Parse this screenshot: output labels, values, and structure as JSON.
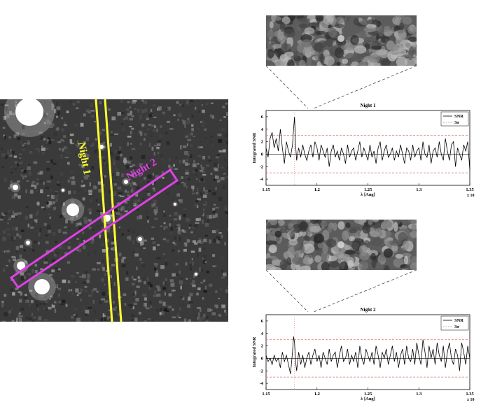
{
  "field": {
    "slit_labels": [
      {
        "text": "Night 1",
        "color": "#ffff33"
      },
      {
        "text": "Night 2",
        "color": "#e040e8"
      }
    ]
  },
  "chart_data": [
    {
      "type": "line",
      "title": "Night 1",
      "xlabel": "λ [Ang]",
      "ylabel": "Integrated SNR",
      "x_multiplier": "x 10",
      "x_multiplier_exp": "4",
      "xlim": [
        1.15,
        1.35
      ],
      "ylim": [
        -5,
        7
      ],
      "xticks": [
        "1.15",
        "1.2",
        "1.25",
        "1.3",
        "1.35"
      ],
      "yticks": [
        "-4",
        "-2",
        "0",
        "2",
        "4",
        "6"
      ],
      "legend": {
        "position": "top-right",
        "entries": [
          "SNR",
          "3σ"
        ]
      },
      "threshold": 3,
      "marker_x": 1.178,
      "series": [
        {
          "name": "SNR",
          "color": "#000000",
          "style": "solid",
          "x": [
            1.15,
            1.152,
            1.154,
            1.156,
            1.158,
            1.16,
            1.162,
            1.164,
            1.166,
            1.168,
            1.17,
            1.172,
            1.174,
            1.176,
            1.177,
            1.178,
            1.179,
            1.18,
            1.182,
            1.184,
            1.186,
            1.188,
            1.19,
            1.192,
            1.194,
            1.196,
            1.198,
            1.2,
            1.202,
            1.204,
            1.206,
            1.208,
            1.21,
            1.212,
            1.214,
            1.216,
            1.218,
            1.22,
            1.222,
            1.224,
            1.226,
            1.228,
            1.23,
            1.232,
            1.234,
            1.236,
            1.238,
            1.24,
            1.242,
            1.244,
            1.246,
            1.248,
            1.25,
            1.252,
            1.254,
            1.256,
            1.258,
            1.26,
            1.262,
            1.264,
            1.266,
            1.268,
            1.27,
            1.272,
            1.274,
            1.276,
            1.278,
            1.28,
            1.282,
            1.284,
            1.286,
            1.288,
            1.29,
            1.292,
            1.294,
            1.296,
            1.298,
            1.3,
            1.302,
            1.304,
            1.306,
            1.308,
            1.31,
            1.312,
            1.314,
            1.316,
            1.318,
            1.32,
            1.322,
            1.324,
            1.326,
            1.328,
            1.33,
            1.332,
            1.334,
            1.336,
            1.338,
            1.34,
            1.342,
            1.344,
            1.346,
            1.348,
            1.35
          ],
          "y": [
            1.0,
            -0.5,
            2.5,
            3.5,
            1.0,
            2.5,
            0.5,
            4.0,
            1.0,
            -1.5,
            2.0,
            0.5,
            -0.5,
            1.5,
            4.0,
            6.0,
            1.5,
            -1.0,
            1.0,
            -0.5,
            1.5,
            0.0,
            -1.0,
            0.5,
            1.5,
            -0.5,
            2.0,
            1.0,
            -1.0,
            1.5,
            0.5,
            -0.5,
            1.0,
            -2.0,
            0.5,
            1.5,
            -0.5,
            0.5,
            -1.0,
            1.0,
            0.0,
            -1.5,
            1.5,
            -0.5,
            0.5,
            1.0,
            -1.0,
            0.5,
            2.0,
            -0.5,
            1.0,
            0.0,
            -1.0,
            1.5,
            -0.5,
            0.5,
            -1.5,
            1.0,
            2.0,
            -1.0,
            0.5,
            1.5,
            -0.5,
            0.0,
            1.0,
            -1.0,
            0.5,
            -0.5,
            1.5,
            0.0,
            -1.5,
            1.0,
            0.5,
            -1.0,
            1.5,
            -0.5,
            0.5,
            1.0,
            -1.0,
            2.0,
            0.0,
            -0.5,
            1.5,
            -1.5,
            0.5,
            1.0,
            -0.5,
            2.0,
            0.0,
            -1.0,
            2.5,
            0.5,
            -1.0,
            1.5,
            2.0,
            -2.0,
            1.0,
            0.0,
            -1.0,
            1.5,
            0.5,
            2.0,
            -2.5
          ]
        },
        {
          "name": "3σ",
          "color": "#e08080",
          "style": "dashed"
        }
      ]
    },
    {
      "type": "line",
      "title": "Night 2",
      "xlabel": "λ [Ang]",
      "ylabel": "Integrated SNR",
      "x_multiplier": "x 10",
      "x_multiplier_exp": "4",
      "xlim": [
        1.15,
        1.35
      ],
      "ylim": [
        -5,
        7
      ],
      "xticks": [
        "1.15",
        "1.2",
        "1.25",
        "1.3",
        "1.35"
      ],
      "yticks": [
        "-4",
        "-2",
        "0",
        "2",
        "4",
        "6"
      ],
      "legend": {
        "position": "top-right",
        "entries": [
          "SNR",
          "3σ"
        ]
      },
      "threshold": 3,
      "marker_x": 1.178,
      "series": [
        {
          "name": "SNR",
          "color": "#000000",
          "style": "solid",
          "x": [
            1.15,
            1.152,
            1.154,
            1.156,
            1.158,
            1.16,
            1.162,
            1.164,
            1.166,
            1.168,
            1.17,
            1.172,
            1.174,
            1.176,
            1.177,
            1.178,
            1.179,
            1.18,
            1.182,
            1.184,
            1.186,
            1.188,
            1.19,
            1.192,
            1.194,
            1.196,
            1.198,
            1.2,
            1.202,
            1.204,
            1.206,
            1.208,
            1.21,
            1.212,
            1.214,
            1.216,
            1.218,
            1.22,
            1.222,
            1.224,
            1.226,
            1.228,
            1.23,
            1.232,
            1.234,
            1.236,
            1.238,
            1.24,
            1.242,
            1.244,
            1.246,
            1.248,
            1.25,
            1.252,
            1.254,
            1.256,
            1.258,
            1.26,
            1.262,
            1.264,
            1.266,
            1.268,
            1.27,
            1.272,
            1.274,
            1.276,
            1.278,
            1.28,
            1.282,
            1.284,
            1.286,
            1.288,
            1.29,
            1.292,
            1.294,
            1.296,
            1.298,
            1.3,
            1.302,
            1.304,
            1.306,
            1.308,
            1.31,
            1.312,
            1.314,
            1.316,
            1.318,
            1.32,
            1.322,
            1.324,
            1.326,
            1.328,
            1.33,
            1.332,
            1.334,
            1.336,
            1.338,
            1.34,
            1.342,
            1.344,
            1.346,
            1.348,
            1.35
          ],
          "y": [
            0.5,
            -0.5,
            0.0,
            -1.0,
            0.5,
            -0.5,
            0.0,
            -1.5,
            1.0,
            -0.5,
            0.5,
            -1.0,
            -2.5,
            1.0,
            3.5,
            2.5,
            -0.5,
            -2.0,
            1.0,
            -1.0,
            0.5,
            -1.5,
            0.0,
            1.0,
            -1.0,
            0.5,
            1.5,
            -0.5,
            0.5,
            -1.5,
            1.0,
            0.0,
            -1.0,
            1.5,
            -0.5,
            0.5,
            1.0,
            -1.5,
            0.5,
            2.0,
            -0.5,
            0.0,
            1.5,
            -1.0,
            0.5,
            -0.5,
            1.0,
            -1.5,
            2.0,
            0.0,
            -1.0,
            1.5,
            0.5,
            -0.5,
            1.0,
            -1.0,
            2.0,
            0.5,
            -1.5,
            1.0,
            0.0,
            1.5,
            -1.0,
            0.5,
            2.0,
            -0.5,
            1.0,
            -1.5,
            0.5,
            1.5,
            -1.0,
            2.0,
            0.0,
            -0.5,
            1.5,
            -1.0,
            2.5,
            0.5,
            -1.0,
            3.0,
            1.0,
            -1.5,
            2.0,
            0.0,
            1.5,
            -1.0,
            2.5,
            0.5,
            -0.5,
            2.0,
            -1.5,
            1.0,
            2.5,
            0.0,
            -1.0,
            1.5,
            0.5,
            -2.0,
            2.5,
            1.0,
            -1.0,
            2.0,
            0.0
          ]
        },
        {
          "name": "3σ",
          "color": "#e08080",
          "style": "dashed"
        }
      ]
    }
  ]
}
